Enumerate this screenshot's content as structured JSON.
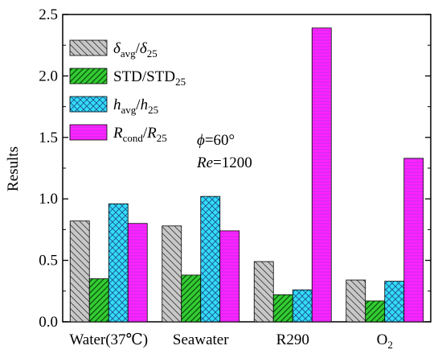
{
  "chart_data": {
    "type": "bar",
    "categories": [
      "Water(37℃)",
      "Seawater",
      "R290",
      "O2"
    ],
    "category_display": {
      "O2": {
        "main": "O",
        "sub": "2"
      }
    },
    "ylabel": "Results",
    "xlabel": "",
    "title": "",
    "ylim": [
      0,
      2.5
    ],
    "yticks": [
      "0.0",
      "0.5",
      "1.0",
      "1.5",
      "2.0",
      "2.5"
    ],
    "grid": false,
    "legend_position": "top-left",
    "series": [
      {
        "name": "δavg/δ25",
        "label_parts": [
          {
            "t": "δ",
            "i": true
          },
          {
            "t": "avg",
            "s": true
          },
          {
            "t": "/"
          },
          {
            "t": "δ",
            "i": true
          },
          {
            "t": "25",
            "s": true
          }
        ],
        "values": [
          0.82,
          0.78,
          0.49,
          0.34
        ],
        "pattern": "diag-down",
        "color": "#c8c8c8",
        "line_color": "#404040"
      },
      {
        "name": "STD/STD25",
        "label_parts": [
          {
            "t": "STD/STD"
          },
          {
            "t": "25",
            "s": true
          }
        ],
        "values": [
          0.35,
          0.38,
          0.22,
          0.17
        ],
        "pattern": "diag-up",
        "color": "#33cc33",
        "line_color": "#0a4d0a"
      },
      {
        "name": "havg/h25",
        "label_parts": [
          {
            "t": "h",
            "i": true
          },
          {
            "t": "avg",
            "s": true
          },
          {
            "t": "/"
          },
          {
            "t": "h",
            "i": true
          },
          {
            "t": "25",
            "s": true
          }
        ],
        "values": [
          0.96,
          1.02,
          0.26,
          0.33
        ],
        "pattern": "cross",
        "color": "#33ddf5",
        "line_color": "#1b4a90"
      },
      {
        "name": "Rcond/R25",
        "label_parts": [
          {
            "t": "R",
            "i": true
          },
          {
            "t": "cond",
            "s": true
          },
          {
            "t": "/"
          },
          {
            "t": "R",
            "i": true
          },
          {
            "t": "25",
            "s": true
          }
        ],
        "values": [
          0.8,
          0.74,
          2.39,
          1.33
        ],
        "pattern": "horiz",
        "color": "#ff22ff",
        "line_color": "#aa33dd"
      }
    ],
    "annotations": [
      {
        "parts": [
          {
            "t": "ϕ",
            "i": true
          },
          {
            "t": "=60°"
          }
        ]
      },
      {
        "parts": [
          {
            "t": "Re",
            "i": true
          },
          {
            "t": "=1200"
          }
        ]
      }
    ]
  }
}
